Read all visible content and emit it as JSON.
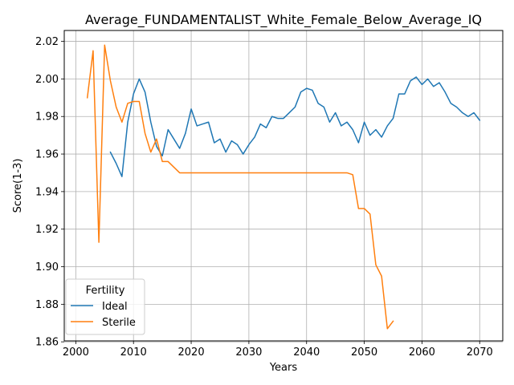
{
  "chart_data": {
    "type": "line",
    "title": "Average_FUNDAMENTALIST_White_Female_Below_Average_IQ",
    "xlabel": "Years",
    "ylabel": "Score(1-3)",
    "xlim": [
      1998,
      2074
    ],
    "ylim": [
      1.8605,
      2.0258
    ],
    "xticks": [
      2000,
      2010,
      2020,
      2030,
      2040,
      2050,
      2060,
      2070
    ],
    "yticks": [
      1.86,
      1.88,
      1.9,
      1.92,
      1.94,
      1.96,
      1.98,
      2.0,
      2.02
    ],
    "ytick_labels": [
      "1.86",
      "1.88",
      "1.90",
      "1.92",
      "1.94",
      "1.96",
      "1.98",
      "2.00",
      "2.02"
    ],
    "grid": true,
    "legend": {
      "title": "Fertility",
      "placement": "lower-left"
    },
    "series": [
      {
        "name": "Ideal",
        "color": "#1f77b4",
        "x": [
          2006,
          2007,
          2008,
          2009,
          2010,
          2011,
          2012,
          2013,
          2014,
          2015,
          2016,
          2017,
          2018,
          2019,
          2020,
          2021,
          2022,
          2023,
          2024,
          2025,
          2026,
          2027,
          2028,
          2029,
          2030,
          2031,
          2032,
          2033,
          2034,
          2035,
          2036,
          2037,
          2038,
          2039,
          2040,
          2041,
          2042,
          2043,
          2044,
          2045,
          2046,
          2047,
          2048,
          2049,
          2050,
          2051,
          2052,
          2053,
          2054,
          2055,
          2056,
          2057,
          2058,
          2059,
          2060,
          2061,
          2062,
          2063,
          2064,
          2065,
          2066,
          2067,
          2068,
          2069,
          2070
        ],
        "y": [
          1.961,
          1.955,
          1.948,
          1.977,
          1.992,
          2.0,
          1.993,
          1.977,
          1.964,
          1.959,
          1.973,
          1.968,
          1.963,
          1.971,
          1.984,
          1.975,
          1.976,
          1.977,
          1.966,
          1.968,
          1.961,
          1.967,
          1.965,
          1.96,
          1.965,
          1.969,
          1.976,
          1.974,
          1.98,
          1.979,
          1.979,
          1.982,
          1.985,
          1.993,
          1.995,
          1.994,
          1.987,
          1.985,
          1.977,
          1.982,
          1.975,
          1.977,
          1.973,
          1.966,
          1.977,
          1.97,
          1.973,
          1.969,
          1.975,
          1.979,
          1.992,
          1.992,
          1.999,
          2.001,
          1.997,
          2.0,
          1.996,
          1.998,
          1.993,
          1.987,
          1.985,
          1.982,
          1.98,
          1.982,
          1.978
        ]
      },
      {
        "name": "Sterile",
        "color": "#ff7f0e",
        "x": [
          2002,
          2003,
          2004,
          2005,
          2006,
          2007,
          2008,
          2009,
          2010,
          2011,
          2012,
          2013,
          2014,
          2015,
          2016,
          2017,
          2018,
          2019,
          2020,
          2021,
          2022,
          2023,
          2024,
          2025,
          2026,
          2027,
          2028,
          2029,
          2030,
          2031,
          2032,
          2033,
          2034,
          2035,
          2036,
          2037,
          2038,
          2039,
          2040,
          2041,
          2042,
          2043,
          2044,
          2045,
          2046,
          2047,
          2048,
          2049,
          2050,
          2051,
          2052,
          2053,
          2054,
          2055
        ],
        "y": [
          1.99,
          2.015,
          1.913,
          2.018,
          1.999,
          1.985,
          1.977,
          1.987,
          1.988,
          1.988,
          1.971,
          1.961,
          1.968,
          1.956,
          1.956,
          1.953,
          1.95,
          1.95,
          1.95,
          1.95,
          1.95,
          1.95,
          1.95,
          1.95,
          1.95,
          1.95,
          1.95,
          1.95,
          1.95,
          1.95,
          1.95,
          1.95,
          1.95,
          1.95,
          1.95,
          1.95,
          1.95,
          1.95,
          1.95,
          1.95,
          1.95,
          1.95,
          1.95,
          1.95,
          1.95,
          1.95,
          1.949,
          1.931,
          1.931,
          1.928,
          1.901,
          1.895,
          1.867,
          1.871
        ]
      }
    ]
  }
}
